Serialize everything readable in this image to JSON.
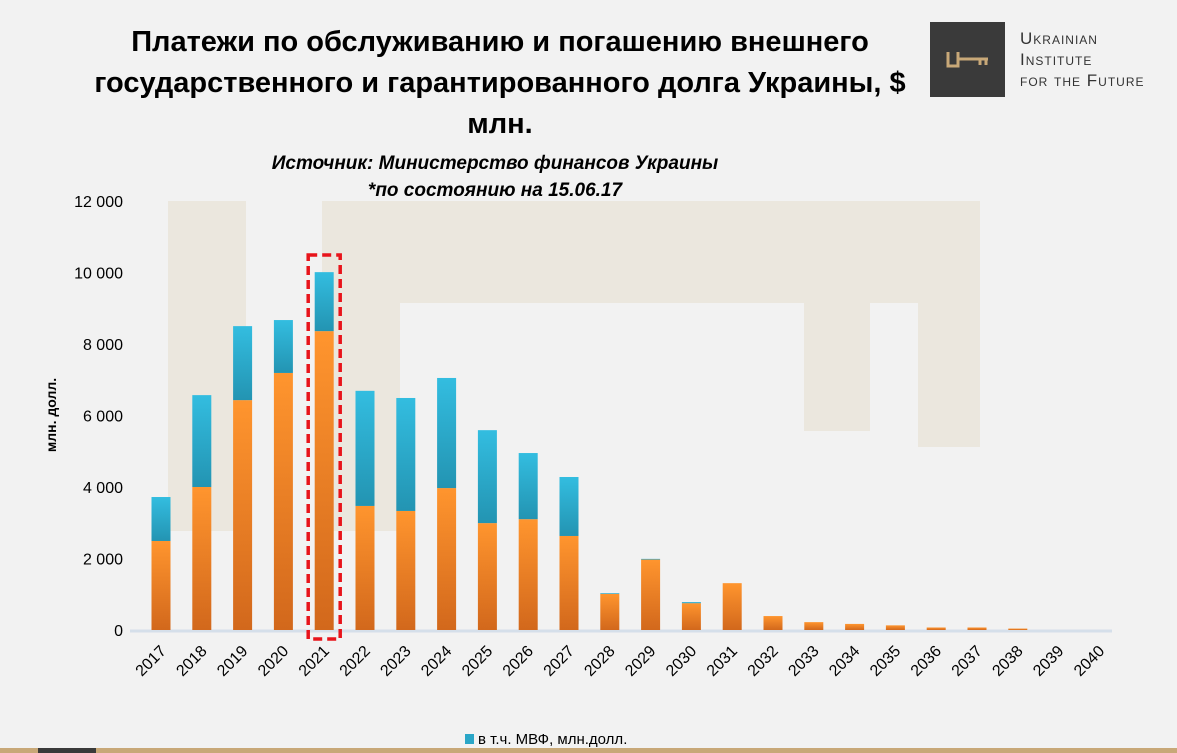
{
  "chart_data": {
    "type": "bar",
    "stacked": true,
    "title": "Платежи по обслуживанию и погашению внешнего государственного и гарантированного долга Украины, $ млн.",
    "subtitle": [
      "Источник: Министерство финансов Украины",
      "*по состоянию на 15.06.17"
    ],
    "xlabel": "",
    "ylabel": "млн. долл.",
    "ylim": [
      0,
      12000
    ],
    "yticks": [
      "0",
      "2 000",
      "4 000",
      "6 000",
      "8 000",
      "10 000",
      "12 000"
    ],
    "ytick_values": [
      0,
      2000,
      4000,
      6000,
      8000,
      10000,
      12000
    ],
    "grid": false,
    "legend": "bottom",
    "categories": [
      "2017",
      "2018",
      "2019",
      "2020",
      "2021",
      "2022",
      "2023",
      "2024",
      "2025",
      "2026",
      "2027",
      "2028",
      "2029",
      "2030",
      "2031",
      "2032",
      "2033",
      "2034",
      "2035",
      "2036",
      "2037",
      "2038",
      "2039",
      "2040"
    ],
    "series": [
      {
        "values": [
          2490,
          4000,
          6430,
          7190,
          8360,
          3470,
          3330,
          3970,
          2990,
          3100,
          2630,
          1010,
          1970,
          750,
          1310,
          390,
          220,
          170,
          130,
          70,
          70,
          40,
          0,
          0
        ],
        "color": "#f7922f"
      },
      {
        "name": "в т.ч. МВФ, млн.долл.",
        "values": [
          1230,
          2570,
          2070,
          1480,
          1650,
          3220,
          3160,
          3080,
          2600,
          1850,
          1650,
          20,
          20,
          30,
          0,
          0,
          0,
          0,
          0,
          0,
          0,
          0,
          0,
          0
        ],
        "color": "#2aa6c7"
      }
    ],
    "highlight": {
      "category": "2021",
      "style": "red-dashed-box",
      "color": "#e8141b"
    }
  },
  "logo": {
    "text_lines": [
      "Ukrainian",
      "Institute",
      "for the Future"
    ],
    "icon": "key-icon"
  }
}
